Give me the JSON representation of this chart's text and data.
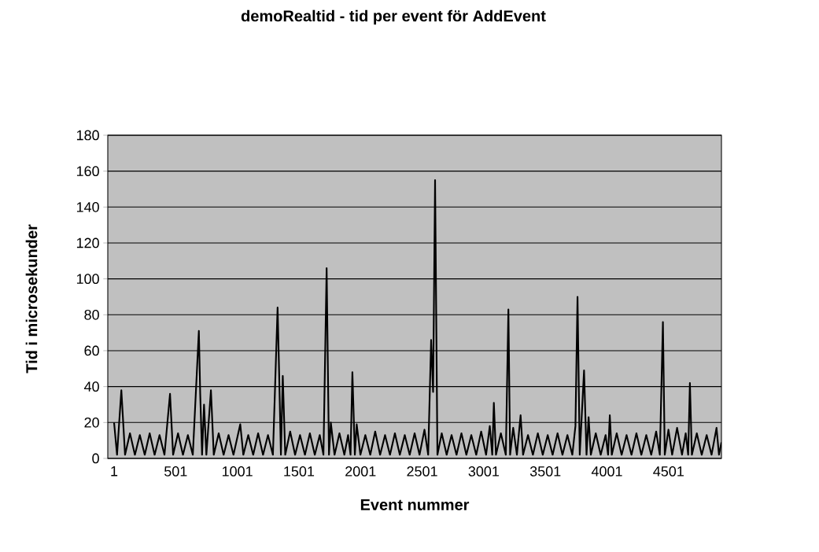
{
  "chart_data": {
    "type": "line",
    "title": "demoRealtid - tid per event för AddEvent",
    "xlabel": "Event nummer",
    "ylabel": "Tid i microsekunder",
    "series": [
      {
        "color": "#000000",
        "x": [
          1,
          25,
          60,
          90,
          130,
          170,
          210,
          250,
          290,
          330,
          370,
          410,
          455,
          480,
          520,
          560,
          600,
          640,
          689,
          700,
          715,
          731,
          750,
          787,
          810,
          850,
          890,
          930,
          970,
          1025,
          1050,
          1090,
          1130,
          1170,
          1210,
          1250,
          1290,
          1328,
          1340,
          1355,
          1370,
          1390,
          1430,
          1470,
          1510,
          1550,
          1590,
          1630,
          1670,
          1700,
          1726,
          1745,
          1760,
          1790,
          1830,
          1870,
          1900,
          1920,
          1935,
          1955,
          1970,
          2000,
          2040,
          2080,
          2120,
          2160,
          2200,
          2240,
          2280,
          2320,
          2360,
          2400,
          2440,
          2480,
          2520,
          2550,
          2574,
          2590,
          2606,
          2625,
          2660,
          2700,
          2740,
          2780,
          2820,
          2860,
          2900,
          2940,
          2980,
          3020,
          3050,
          3070,
          3083,
          3100,
          3140,
          3180,
          3201,
          3215,
          3240,
          3270,
          3300,
          3320,
          3360,
          3400,
          3440,
          3480,
          3520,
          3560,
          3600,
          3640,
          3680,
          3720,
          3745,
          3762,
          3780,
          3815,
          3835,
          3852,
          3870,
          3910,
          3950,
          3990,
          4010,
          4024,
          4040,
          4080,
          4120,
          4160,
          4200,
          4240,
          4280,
          4320,
          4360,
          4400,
          4430,
          4455,
          4470,
          4500,
          4530,
          4570,
          4610,
          4640,
          4660,
          4674,
          4690,
          4730,
          4770,
          4810,
          4850,
          4890,
          4910,
          4930
        ],
        "values": [
          20,
          2,
          38,
          2,
          14,
          2,
          13,
          2,
          14,
          2,
          13,
          2,
          36,
          2,
          14,
          2,
          13,
          2,
          71,
          36,
          2,
          30,
          2,
          38,
          2,
          14,
          2,
          13,
          2,
          19,
          2,
          13,
          2,
          14,
          2,
          13,
          2,
          84,
          49,
          2,
          46,
          2,
          15,
          2,
          13,
          2,
          14,
          2,
          13,
          2,
          106,
          2,
          20,
          2,
          14,
          2,
          13,
          2,
          48,
          2,
          19,
          2,
          13,
          2,
          15,
          2,
          13,
          2,
          14,
          2,
          13,
          2,
          14,
          2,
          16,
          2,
          66,
          37,
          155,
          2,
          14,
          2,
          13,
          2,
          14,
          2,
          13,
          2,
          15,
          2,
          18,
          2,
          31,
          2,
          14,
          2,
          83,
          2,
          17,
          2,
          24,
          2,
          13,
          2,
          14,
          2,
          13,
          2,
          14,
          2,
          13,
          2,
          18,
          90,
          2,
          49,
          2,
          23,
          2,
          14,
          2,
          13,
          2,
          24,
          2,
          14,
          2,
          13,
          2,
          14,
          2,
          13,
          2,
          15,
          2,
          76,
          2,
          16,
          2,
          17,
          2,
          14,
          2,
          42,
          2,
          14,
          2,
          13,
          2,
          17,
          2,
          9
        ]
      }
    ],
    "xlim": [
      -50,
      4930
    ],
    "xticks": [
      1,
      501,
      1001,
      1501,
      2001,
      2501,
      3001,
      3501,
      4001,
      4501
    ],
    "ylim": [
      0,
      180
    ],
    "yticks": [
      0,
      20,
      40,
      60,
      80,
      100,
      120,
      140,
      160,
      180
    ],
    "grid": "y",
    "marker": "none",
    "line_style": "solid"
  }
}
